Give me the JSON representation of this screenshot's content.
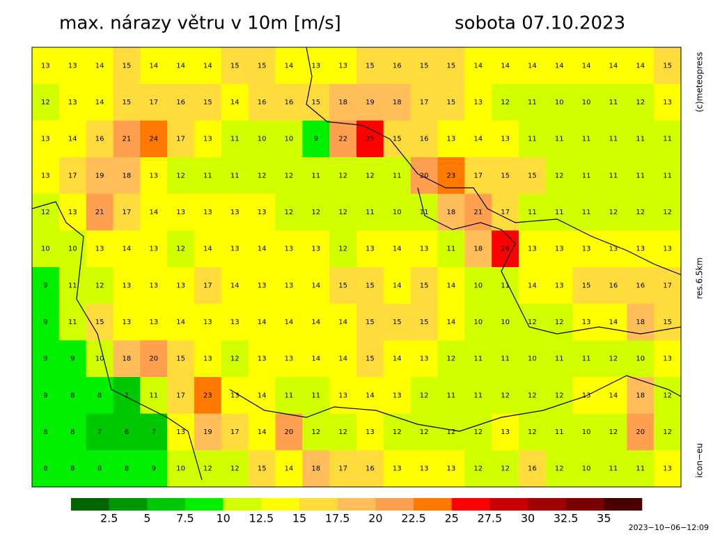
{
  "header": {
    "title": "max. nárazy větru v 10m [m/s]",
    "date": "sobota 07.10.2023"
  },
  "side_labels": {
    "copyright": "(c)meteopress",
    "resolution": "res.6.5km",
    "model": "icon−eu"
  },
  "timestamp": "2023−10−06−12:09",
  "legend": {
    "levels": [
      2.5,
      5,
      7.5,
      10,
      12.5,
      15,
      17.5,
      20,
      22.5,
      25,
      27.5,
      30,
      32.5,
      35
    ],
    "colors": [
      "#006400",
      "#009600",
      "#00c800",
      "#00f000",
      "#d2ff00",
      "#ffff00",
      "#ffdc3c",
      "#ffbe5a",
      "#ffa050",
      "#ff7800",
      "#ff0000",
      "#c80000",
      "#a00000",
      "#780000",
      "#4b0000"
    ]
  },
  "grid": {
    "rows": [
      [
        13,
        13,
        14,
        15,
        14,
        14,
        14,
        15,
        15,
        14,
        13,
        13,
        15,
        16,
        15,
        15,
        14,
        14,
        14,
        14,
        14,
        14,
        14,
        15
      ],
      [
        12,
        13,
        14,
        15,
        17,
        16,
        15,
        14,
        16,
        16,
        15,
        18,
        19,
        18,
        17,
        15,
        13,
        12,
        11,
        10,
        10,
        11,
        12,
        13
      ],
      [
        13,
        14,
        16,
        21,
        24,
        17,
        13,
        11,
        10,
        10,
        9,
        22,
        25,
        15,
        16,
        13,
        14,
        13,
        11,
        11,
        11,
        11,
        11,
        11
      ],
      [
        13,
        17,
        19,
        18,
        13,
        12,
        11,
        11,
        12,
        12,
        11,
        12,
        12,
        11,
        20,
        23,
        17,
        15,
        15,
        12,
        11,
        11,
        11,
        11
      ],
      [
        12,
        13,
        21,
        17,
        14,
        13,
        13,
        13,
        13,
        12,
        12,
        12,
        11,
        10,
        11,
        18,
        21,
        17,
        11,
        11,
        11,
        12,
        12,
        12
      ],
      [
        10,
        10,
        13,
        14,
        13,
        12,
        14,
        13,
        14,
        13,
        13,
        12,
        13,
        14,
        13,
        11,
        18,
        26,
        13,
        13,
        13,
        13,
        13,
        13
      ],
      [
        9,
        11,
        12,
        13,
        13,
        13,
        17,
        14,
        13,
        13,
        14,
        15,
        15,
        14,
        15,
        14,
        10,
        11,
        14,
        13,
        15,
        16,
        16,
        17
      ],
      [
        9,
        11,
        15,
        13,
        13,
        14,
        13,
        13,
        14,
        14,
        14,
        14,
        15,
        15,
        15,
        14,
        10,
        10,
        12,
        12,
        13,
        14,
        18,
        15
      ],
      [
        9,
        9,
        10,
        18,
        20,
        15,
        13,
        12,
        13,
        13,
        14,
        14,
        15,
        14,
        13,
        12,
        11,
        11,
        10,
        11,
        11,
        12,
        10,
        13
      ],
      [
        9,
        8,
        8,
        7,
        11,
        17,
        23,
        13,
        14,
        11,
        11,
        13,
        14,
        13,
        12,
        11,
        11,
        12,
        12,
        12,
        13,
        14,
        18,
        12
      ],
      [
        8,
        8,
        7,
        6,
        7,
        13,
        19,
        17,
        14,
        20,
        12,
        12,
        13,
        12,
        12,
        12,
        12,
        13,
        12,
        11,
        10,
        12,
        20,
        12
      ],
      [
        8,
        8,
        8,
        8,
        9,
        10,
        12,
        12,
        15,
        14,
        18,
        17,
        16,
        13,
        13,
        13,
        12,
        12,
        16,
        12,
        10,
        11,
        11,
        13
      ]
    ]
  }
}
